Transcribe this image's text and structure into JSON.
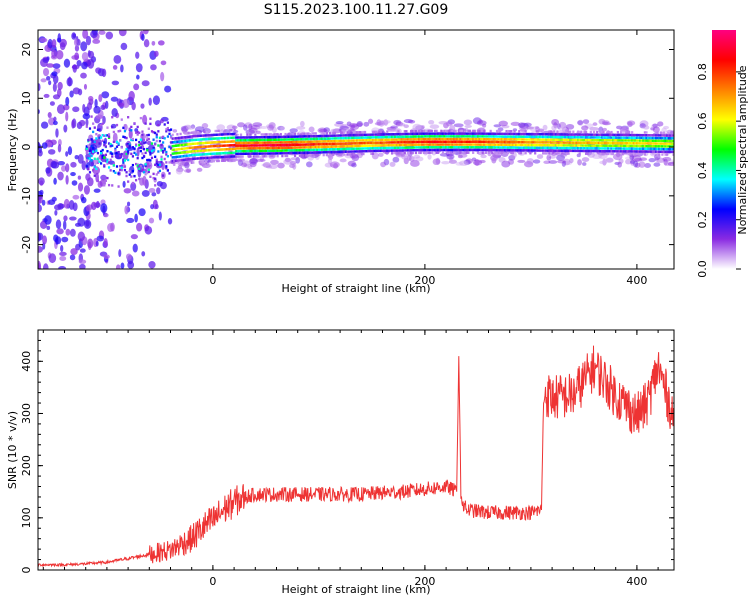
{
  "title": "S115.2023.100.11.27.G09",
  "chart_data": [
    {
      "type": "heatmap",
      "xlabel": "Height of straight line (km)",
      "ylabel": "Frequency (Hz)",
      "xlim": [
        -165,
        435
      ],
      "ylim": [
        -25,
        24
      ],
      "xticks": [
        0,
        200,
        400
      ],
      "yticks": [
        -20,
        -10,
        0,
        10,
        20
      ],
      "colorbar": {
        "label": "Normalized spectral amplitude",
        "range": [
          0,
          0.97
        ],
        "ticks": [
          0.0,
          0.2,
          0.4,
          0.6,
          0.8
        ],
        "tick_labels": [
          "0.0",
          "0.2",
          "0.4",
          "0.6",
          "0.8"
        ],
        "colormap": [
          "#ffffff",
          "#8a2be2",
          "#0000ff",
          "#00ffff",
          "#00ff00",
          "#ffff00",
          "#ff8000",
          "#ff0000",
          "#ff0080"
        ]
      },
      "ridge": {
        "description_free": true,
        "x": [
          -60,
          -40,
          -20,
          0,
          20,
          60,
          100,
          150,
          200,
          250,
          300,
          350,
          400,
          435
        ],
        "y": [
          -1.5,
          -0.8,
          -0.3,
          0.0,
          0.2,
          0.3,
          0.5,
          0.8,
          1.0,
          1.0,
          0.9,
          0.8,
          0.7,
          0.6
        ],
        "amplitude": [
          0.45,
          0.55,
          0.7,
          0.75,
          0.85,
          0.9,
          0.8,
          0.75,
          0.85,
          0.8,
          0.72,
          0.68,
          0.65,
          0.6
        ]
      }
    },
    {
      "type": "line",
      "xlabel": "Height of straight line (km)",
      "ylabel": "SNR (10 * v/v)",
      "xlim": [
        -165,
        435
      ],
      "ylim": [
        0,
        460
      ],
      "xticks": [
        0,
        200,
        400
      ],
      "yticks": [
        0,
        100,
        200,
        300,
        400
      ],
      "color": "#ee3333",
      "series": [
        {
          "x": [
            -165,
            -140,
            -120,
            -100,
            -80,
            -60,
            -40,
            -30,
            -20,
            -10,
            0,
            10,
            20,
            30,
            40,
            60,
            80,
            100,
            120,
            140,
            160,
            180,
            200,
            220,
            230,
            232,
            234,
            236,
            240,
            260,
            280,
            300,
            310,
            312,
            320,
            340,
            360,
            380,
            400,
            410,
            420,
            435
          ],
          "y": [
            10,
            10,
            12,
            15,
            22,
            30,
            38,
            50,
            60,
            80,
            95,
            115,
            130,
            140,
            145,
            145,
            145,
            145,
            145,
            145,
            148,
            150,
            155,
            160,
            150,
            410,
            150,
            125,
            115,
            110,
            110,
            110,
            115,
            340,
            330,
            335,
            390,
            335,
            295,
            320,
            390,
            290
          ]
        }
      ]
    }
  ]
}
